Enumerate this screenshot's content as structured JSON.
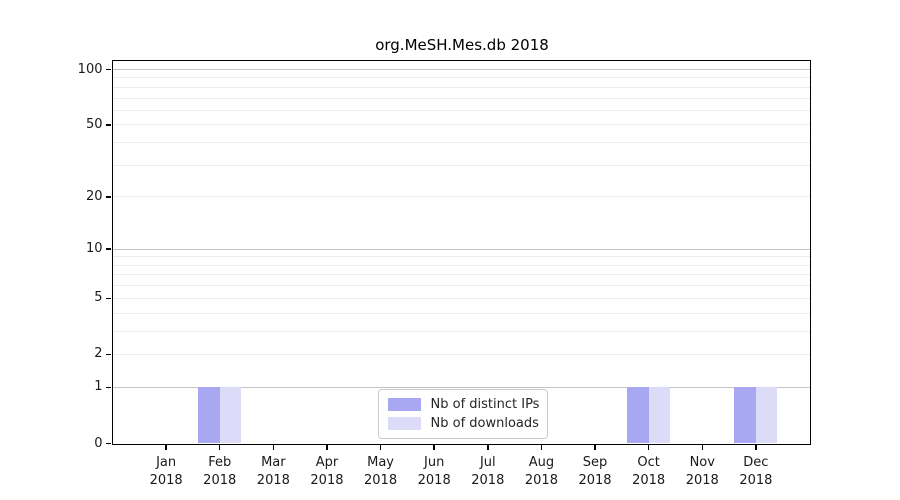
{
  "chart_data": {
    "type": "bar",
    "title": "org.MeSH.Mes.db 2018",
    "x": {
      "categories": [
        "Jan",
        "Feb",
        "Mar",
        "Apr",
        "May",
        "Jun",
        "Jul",
        "Aug",
        "Sep",
        "Oct",
        "Nov",
        "Dec"
      ],
      "year": "2018"
    },
    "series": [
      {
        "name": "Nb of distinct IPs",
        "color": "#a8a8f2",
        "values": [
          0,
          1,
          0,
          0,
          0,
          0,
          0,
          0,
          0,
          1,
          0,
          1
        ]
      },
      {
        "name": "Nb of downloads",
        "color": "#dcdcf8",
        "values": [
          0,
          1,
          0,
          0,
          0,
          0,
          0,
          0,
          0,
          1,
          0,
          1
        ]
      }
    ],
    "y_axis": {
      "scale": "log1p",
      "tick_values": [
        100,
        50,
        20,
        10,
        5,
        2,
        1,
        0
      ],
      "ylim": [
        0,
        111
      ],
      "major_grid_values": [
        1,
        10,
        100
      ],
      "minor_grid_values": [
        2,
        3,
        4,
        5,
        6,
        7,
        8,
        9,
        20,
        30,
        40,
        50,
        60,
        70,
        80,
        90
      ]
    },
    "legend": {
      "position": "lower center"
    },
    "colors": {
      "spine": "#000000",
      "grid_major": "#c4c4c4",
      "grid_minor": "#ececec",
      "text": "#1a1a1a",
      "legend_border": "#cccccc"
    },
    "grid": "horizontal only"
  }
}
